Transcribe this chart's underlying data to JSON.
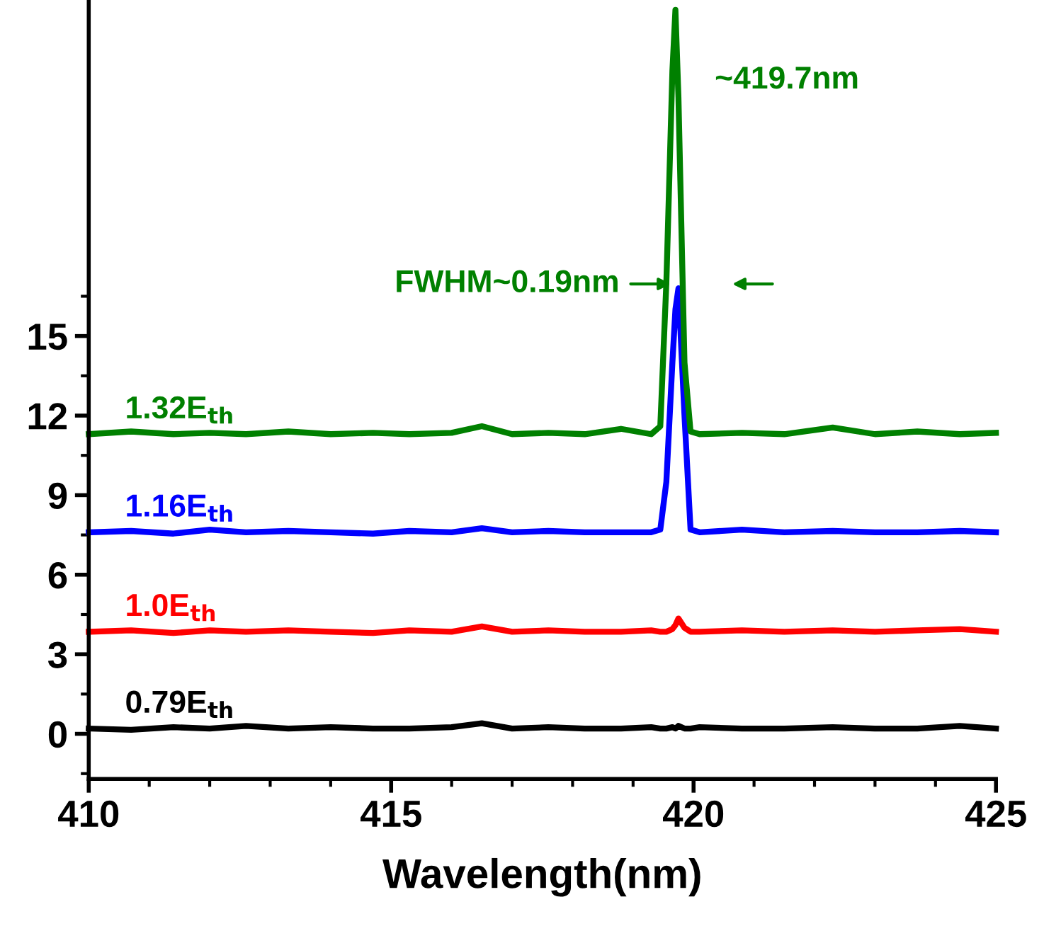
{
  "chart_data": {
    "type": "line",
    "xlabel": "Wavelength(nm)",
    "xlim": [
      410,
      425
    ],
    "xticks": [
      410,
      415,
      420,
      425
    ],
    "ylim": [
      -1.7,
      27.6
    ],
    "yticks": [
      0,
      3,
      6,
      9,
      12,
      15
    ],
    "grid": false,
    "legend": false,
    "marker": "none",
    "line_style": "solid",
    "x": [
      410,
      410.7,
      411.4,
      412,
      412.6,
      413.3,
      414,
      414.7,
      415.3,
      416,
      416.5,
      417,
      417.6,
      418.2,
      418.8,
      419.3,
      419.45,
      419.55,
      419.65,
      419.7,
      419.75,
      419.85,
      419.95,
      420.1,
      420.8,
      421.5,
      422.3,
      423,
      423.7,
      424.4,
      425
    ],
    "series": [
      {
        "name": "0.79E$_{th}$",
        "color": "#000000",
        "values": [
          0.2,
          0.15,
          0.25,
          0.2,
          0.3,
          0.2,
          0.25,
          0.2,
          0.2,
          0.25,
          0.4,
          0.2,
          0.25,
          0.2,
          0.2,
          0.25,
          0.2,
          0.2,
          0.25,
          0.2,
          0.3,
          0.2,
          0.2,
          0.25,
          0.2,
          0.2,
          0.25,
          0.2,
          0.2,
          0.3,
          0.2
        ]
      },
      {
        "name": "1.0E$_{th}$",
        "color": "#ff0000",
        "values": [
          3.85,
          3.9,
          3.8,
          3.9,
          3.85,
          3.9,
          3.85,
          3.8,
          3.9,
          3.85,
          4.05,
          3.85,
          3.9,
          3.85,
          3.85,
          3.9,
          3.85,
          3.85,
          3.95,
          4.1,
          4.35,
          4.0,
          3.85,
          3.85,
          3.9,
          3.85,
          3.9,
          3.85,
          3.9,
          3.95,
          3.85
        ]
      },
      {
        "name": "1.16E$_{th}$",
        "color": "#0000ff",
        "values": [
          7.6,
          7.65,
          7.55,
          7.7,
          7.6,
          7.65,
          7.6,
          7.55,
          7.65,
          7.6,
          7.75,
          7.6,
          7.65,
          7.6,
          7.6,
          7.6,
          7.7,
          9.5,
          14,
          16,
          16.8,
          12,
          7.7,
          7.6,
          7.7,
          7.6,
          7.65,
          7.6,
          7.6,
          7.65,
          7.6
        ]
      },
      {
        "name": "1.32E$_{th}$",
        "color": "#008000",
        "values": [
          11.3,
          11.4,
          11.3,
          11.35,
          11.3,
          11.4,
          11.3,
          11.35,
          11.3,
          11.35,
          11.6,
          11.3,
          11.35,
          11.3,
          11.5,
          11.3,
          11.6,
          17,
          25,
          27.3,
          24,
          14,
          11.4,
          11.3,
          11.35,
          11.3,
          11.55,
          11.3,
          11.4,
          11.3,
          11.35
        ]
      }
    ],
    "annotations": [
      {
        "text": "~419.7nm",
        "x": 419.7,
        "y": 27.3
      },
      "FWHM~0.19nm"
    ]
  }
}
